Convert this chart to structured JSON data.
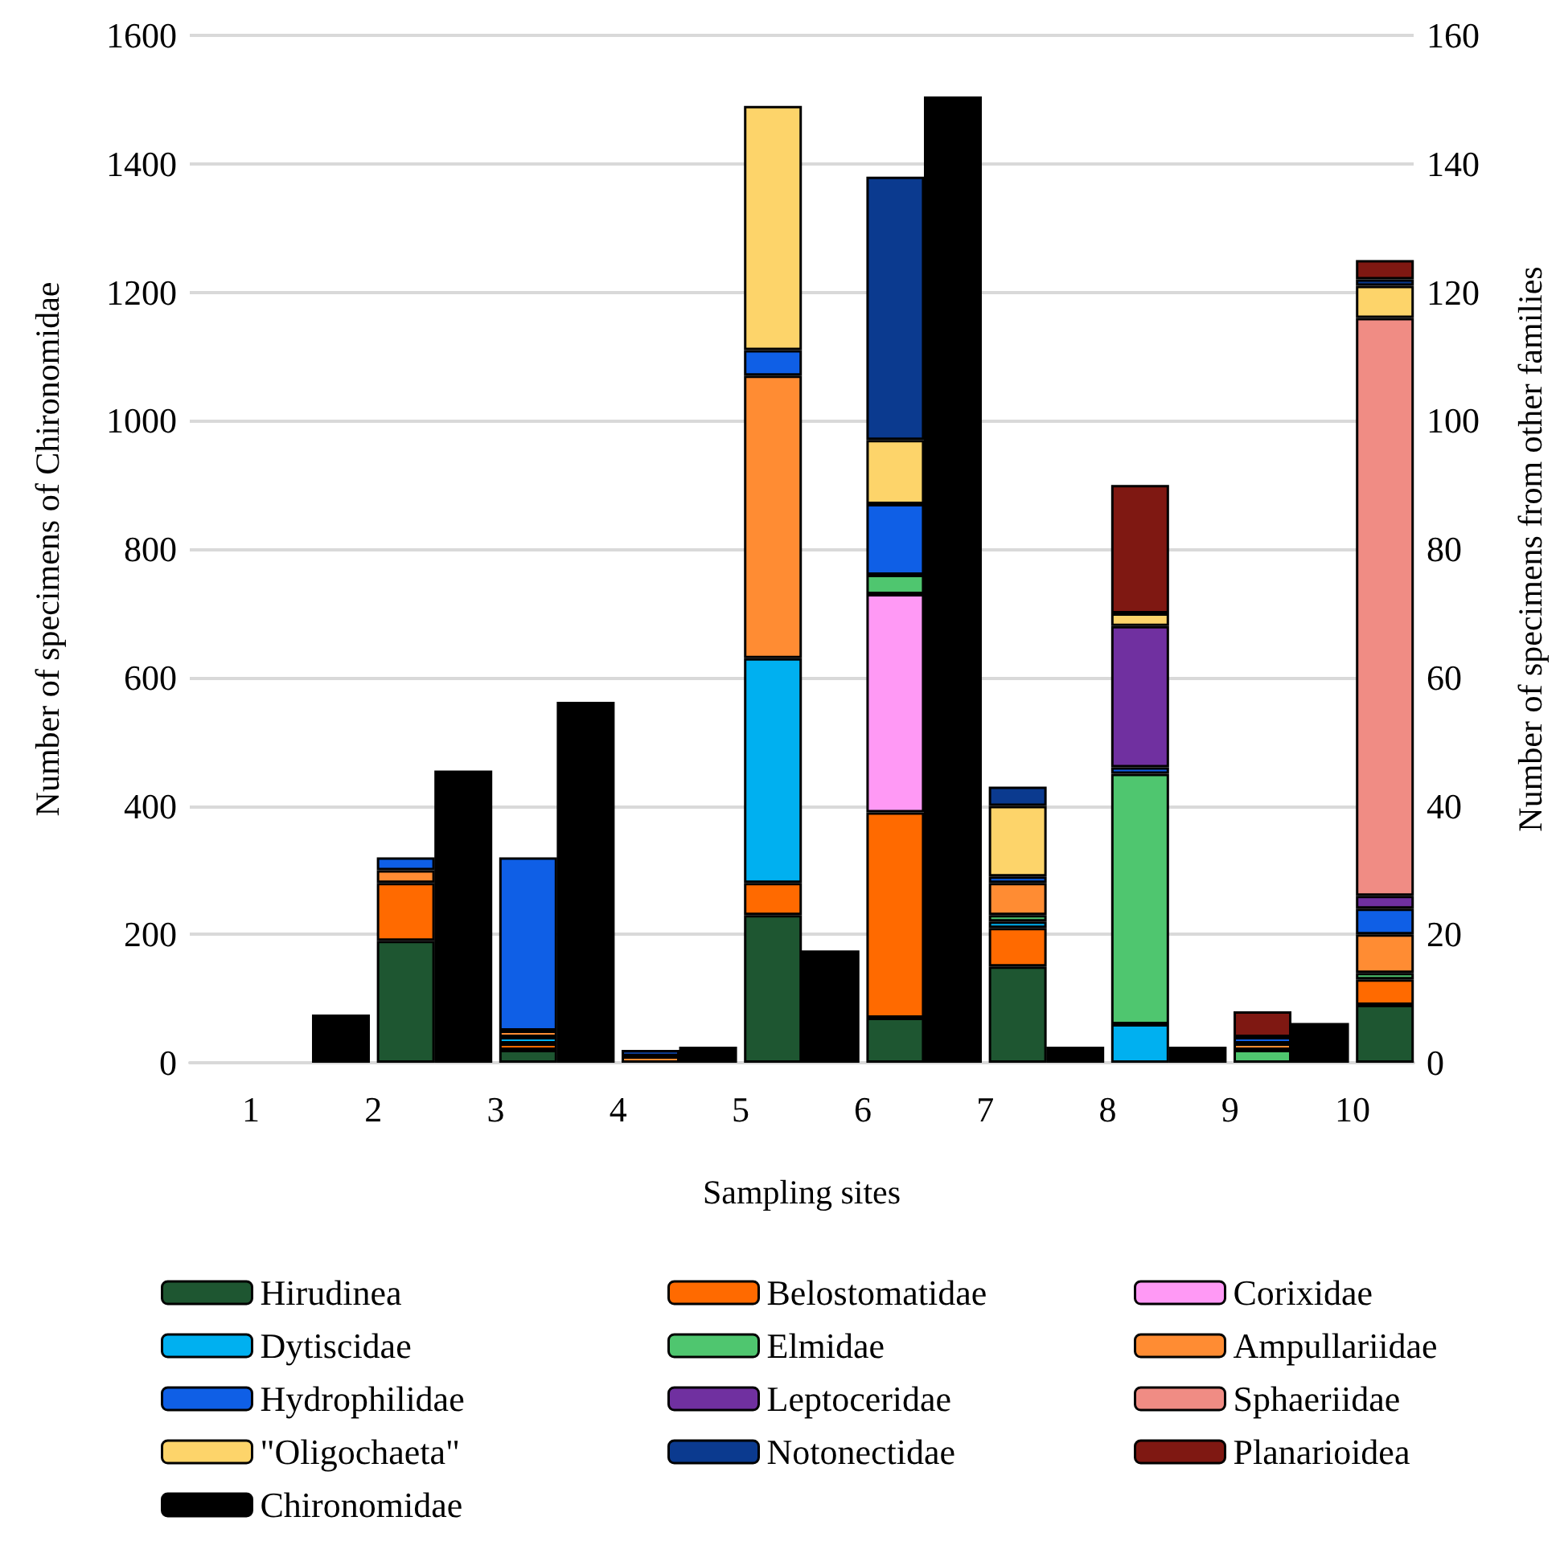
{
  "chart_data": {
    "type": "bar",
    "xlabel": "Sampling sites",
    "ylabel": "Number of specimens of Chironomidae",
    "y2label": "Number of specimens from other families",
    "categories": [
      "1",
      "2",
      "3",
      "4",
      "5",
      "6",
      "7",
      "8",
      "9",
      "10"
    ],
    "stacked": true,
    "grid": "y",
    "legend": "bottom",
    "ylim": [
      0,
      1600
    ],
    "yticks": [
      0,
      200,
      400,
      600,
      800,
      1000,
      1200,
      1400,
      1600
    ],
    "y2lim": [
      0,
      160
    ],
    "y2ticks": [
      0,
      20,
      40,
      60,
      80,
      100,
      120,
      140,
      160
    ],
    "series": [
      {
        "name": "Hirudinea",
        "color": "#1e5631",
        "axis": "y2",
        "values": [
          null,
          19,
          2,
          null,
          23,
          7,
          15,
          null,
          null,
          9
        ]
      },
      {
        "name": "Belostomatidae",
        "color": "#ff6a00",
        "axis": "y2",
        "values": [
          null,
          9,
          1,
          null,
          5,
          32,
          6,
          null,
          null,
          4
        ]
      },
      {
        "name": "Corixidae",
        "color": "#ff99f5",
        "axis": "y2",
        "values": [
          null,
          null,
          null,
          null,
          null,
          34,
          null,
          null,
          null,
          null
        ]
      },
      {
        "name": "Dytiscidae",
        "color": "#00b0f0",
        "axis": "y2",
        "values": [
          null,
          null,
          1,
          null,
          35,
          null,
          1,
          6,
          null,
          null
        ]
      },
      {
        "name": "Elmidae",
        "color": "#4fc66f",
        "axis": "y2",
        "values": [
          null,
          null,
          null,
          null,
          null,
          3,
          1,
          39,
          2,
          1
        ]
      },
      {
        "name": "Ampullariidae",
        "color": "#ff8c33",
        "axis": "y2",
        "values": [
          null,
          2,
          1,
          1,
          44,
          null,
          5,
          null,
          1,
          6
        ]
      },
      {
        "name": "Hydrophilidae",
        "color": "#0f5fe6",
        "axis": "y2",
        "values": [
          null,
          2,
          27,
          null,
          4,
          11,
          1,
          1,
          1,
          4
        ]
      },
      {
        "name": "Leptoceridae",
        "color": "#7030a0",
        "axis": "y2",
        "values": [
          null,
          null,
          null,
          null,
          null,
          null,
          null,
          22,
          null,
          2
        ]
      },
      {
        "name": "Sphaeriidae",
        "color": "#f08c84",
        "axis": "y2",
        "values": [
          null,
          null,
          null,
          null,
          null,
          null,
          null,
          null,
          null,
          90
        ]
      },
      {
        "name": "\"Oligochaeta\"",
        "color": "#fdd46a",
        "axis": "y2",
        "values": [
          null,
          null,
          null,
          null,
          38,
          10,
          11,
          2,
          null,
          5
        ]
      },
      {
        "name": "Notonectidae",
        "color": "#0b3a8f",
        "axis": "y2",
        "values": [
          null,
          null,
          null,
          1,
          null,
          41,
          3,
          null,
          null,
          1
        ]
      },
      {
        "name": "Planarioidea",
        "color": "#7f1812",
        "axis": "y2",
        "values": [
          null,
          null,
          null,
          null,
          null,
          null,
          null,
          20,
          4,
          3
        ]
      },
      {
        "name": "Chironomidae",
        "color": "#000000",
        "axis": "y",
        "values": [
          null,
          75,
          455,
          562,
          25,
          175,
          1505,
          25,
          25,
          62
        ]
      }
    ]
  }
}
